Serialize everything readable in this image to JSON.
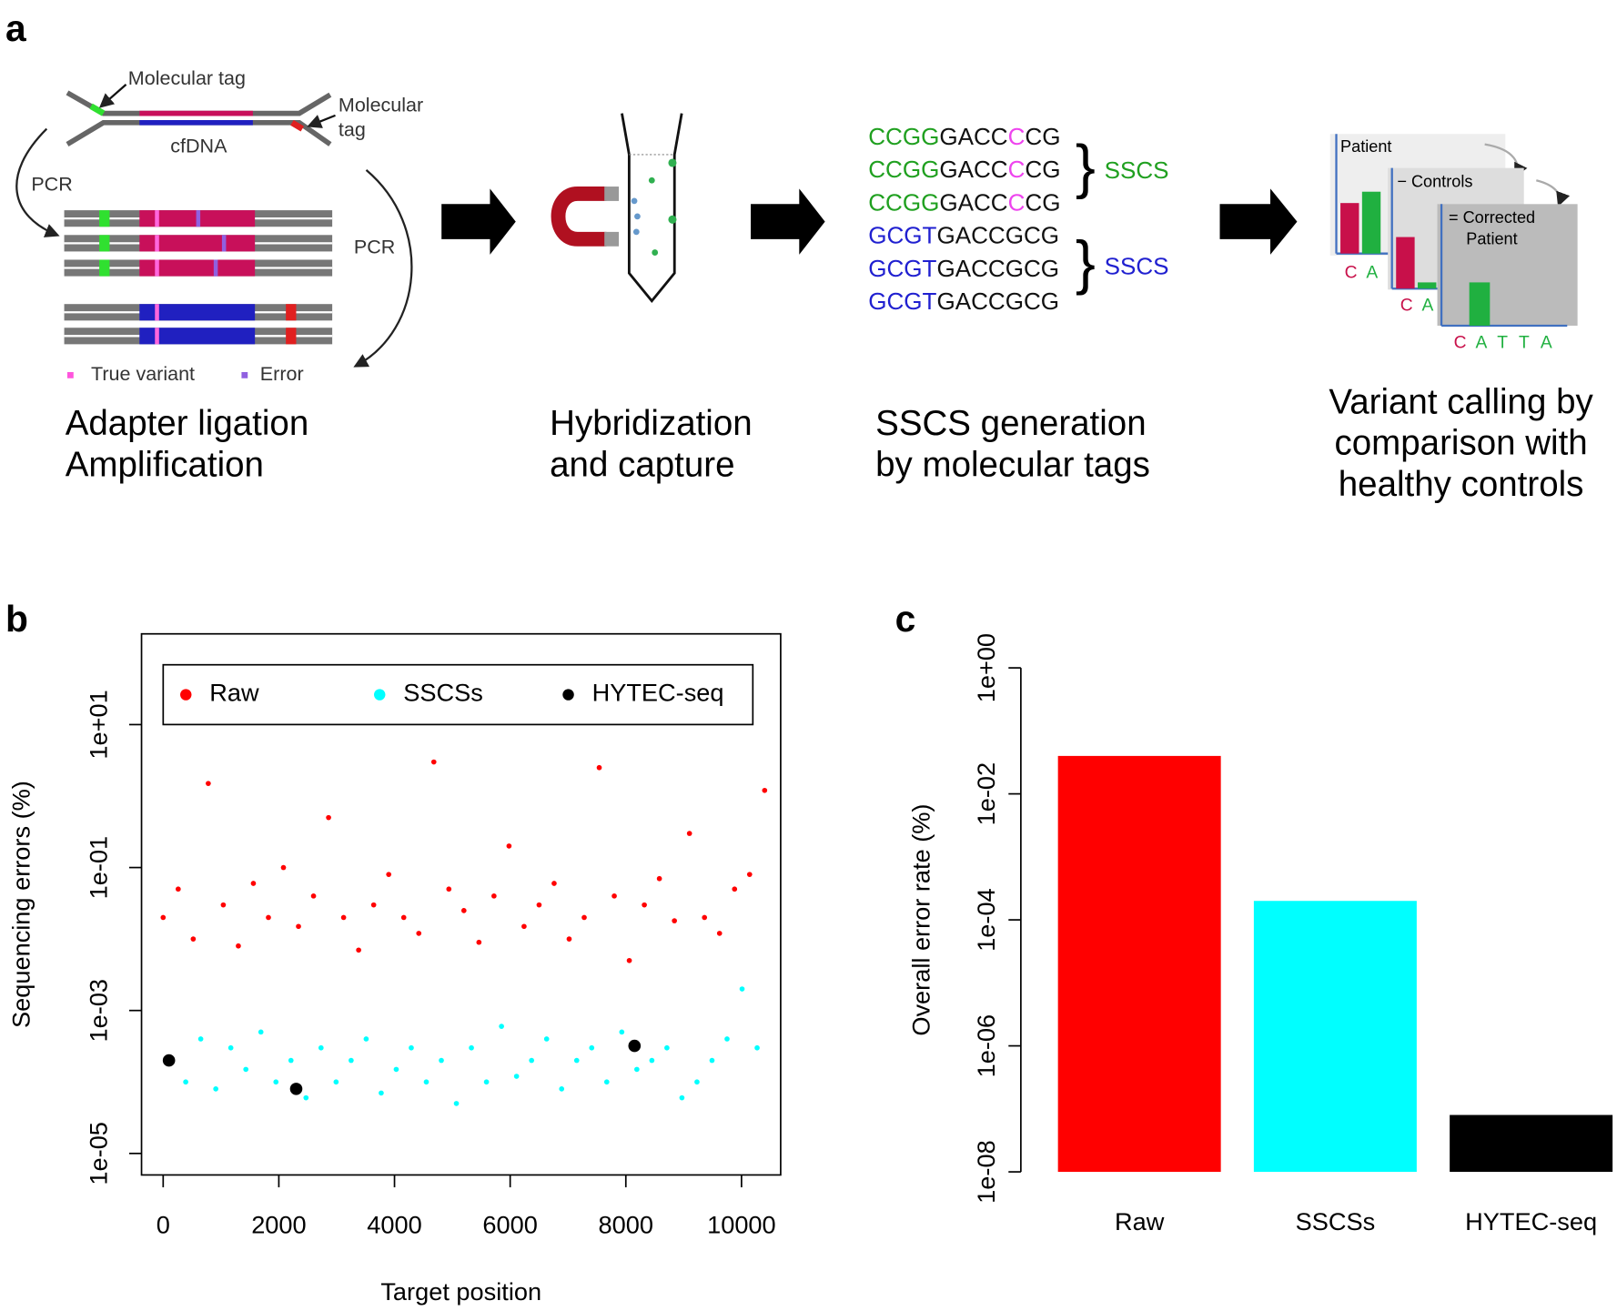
{
  "figure": {
    "panel_a": {
      "label": "a",
      "molecular_tag_1": "Molecular tag",
      "molecular_tag_2": [
        "Molecular",
        "tag"
      ],
      "cfdna": "cfDNA",
      "pcr_1": "PCR",
      "pcr_2": "PCR",
      "legend": [
        "True variant",
        "Error"
      ],
      "steps": [
        [
          "Adapter ligation",
          "Amplification"
        ],
        [
          "Hybridization",
          "and capture"
        ],
        [
          "SSCS generation",
          "by molecular tags"
        ],
        [
          "Variant calling by",
          "comparison with",
          "healthy controls"
        ]
      ],
      "sequences": [
        [
          "CCGG",
          "GACC",
          "C",
          "CG"
        ],
        [
          "CCGG",
          "GACC",
          "C",
          "CG"
        ],
        [
          "CCGG",
          "GACC",
          "C",
          "CG"
        ],
        [
          "GCGT",
          "GACCGCG"
        ],
        [
          "GCGT",
          "GACCGCG"
        ],
        [
          "GCGT",
          "GACCGCG"
        ]
      ],
      "sscs": [
        "SSCS",
        "SSCS"
      ],
      "mini_charts": {
        "patient": "Patient",
        "controls": "− Controls",
        "corrected": [
          "= Corrected",
          "Patient"
        ],
        "bases_1": [
          "C",
          "A"
        ],
        "bases_2": [
          "C",
          "A"
        ],
        "bases_3": [
          "C",
          "A",
          "T",
          "T",
          "A"
        ]
      }
    },
    "panel_b_label": "b",
    "panel_c_label": "c"
  },
  "chart_data": [
    {
      "type": "scatter",
      "xlabel": "Target position",
      "ylabel": "Sequencing errors (%)",
      "xlim": [
        -374,
        10677
      ],
      "ylim": [
        5e-06,
        186
      ],
      "log_y": true,
      "legend": "top",
      "xticks": [
        0,
        2000,
        4000,
        6000,
        8000,
        10000
      ],
      "yticks": [
        {
          "value": 10,
          "label": "1e+01"
        },
        {
          "value": 0.1,
          "label": "1e-01"
        },
        {
          "value": 0.001,
          "label": "1e-03"
        },
        {
          "value": 1e-05,
          "label": "1e-05"
        }
      ],
      "series": [
        {
          "name": "Raw",
          "color": "#ff0000",
          "x": [
            0,
            260,
            520,
            780,
            1040,
            1300,
            1560,
            1820,
            2080,
            2340,
            2600,
            2860,
            3120,
            3380,
            3640,
            3900,
            4160,
            4420,
            4680,
            4940,
            5200,
            5460,
            5720,
            5980,
            6240,
            6500,
            6760,
            7020,
            7280,
            7540,
            7800,
            8060,
            8320,
            8580,
            8840,
            9100,
            9360,
            9620,
            9880,
            10140,
            10400
          ],
          "values": [
            0.02,
            0.05,
            0.01,
            1.5,
            0.03,
            0.008,
            0.06,
            0.02,
            0.1,
            0.015,
            0.04,
            0.5,
            0.02,
            0.007,
            0.03,
            0.08,
            0.02,
            0.012,
            3,
            0.05,
            0.025,
            0.009,
            0.04,
            0.2,
            0.015,
            0.03,
            0.06,
            0.01,
            0.02,
            2.5,
            0.04,
            0.005,
            0.03,
            0.07,
            0.018,
            0.3,
            0.02,
            0.012,
            0.05,
            0.08,
            1.2
          ]
        },
        {
          "name": "SSCSs",
          "color": "#00ffff",
          "x": [
            130,
            390,
            650,
            910,
            1170,
            1430,
            1690,
            1950,
            2210,
            2470,
            2730,
            2990,
            3250,
            3510,
            3770,
            4030,
            4290,
            4550,
            4810,
            5070,
            5330,
            5590,
            5850,
            6110,
            6370,
            6630,
            6890,
            7150,
            7410,
            7670,
            7930,
            8190,
            8450,
            8710,
            8970,
            9230,
            9490,
            9750,
            10010,
            10270
          ],
          "values": [
            0.0002,
            0.0001,
            0.0004,
            8e-05,
            0.0003,
            0.00015,
            0.0005,
            0.0001,
            0.0002,
            6e-05,
            0.0003,
            0.0001,
            0.0002,
            0.0004,
            7e-05,
            0.00015,
            0.0003,
            0.0001,
            0.0002,
            5e-05,
            0.0003,
            0.0001,
            0.0006,
            0.00012,
            0.0002,
            0.0004,
            8e-05,
            0.0002,
            0.0003,
            0.0001,
            0.0005,
            0.00015,
            0.0002,
            0.0003,
            6e-05,
            0.0001,
            0.0002,
            0.0004,
            0.002,
            0.0003
          ]
        },
        {
          "name": "HYTEC-seq",
          "color": "#000000",
          "x": [
            100,
            2300,
            8150
          ],
          "values": [
            0.0002,
            8e-05,
            0.00032
          ]
        }
      ]
    },
    {
      "type": "bar",
      "ylabel": "Overall error rate (%)",
      "categories": [
        "Raw",
        "SSCSs",
        "HYTEC-seq"
      ],
      "values": [
        0.04,
        0.0002,
        8e-08
      ],
      "colors": [
        "#ff0000",
        "#00ffff",
        "#000000"
      ],
      "ylim": [
        1e-08,
        1
      ],
      "log_y": true,
      "yticks": [
        {
          "value": 1,
          "label": "1e+00"
        },
        {
          "value": 0.01,
          "label": "1e-02"
        },
        {
          "value": 0.0001,
          "label": "1e-04"
        },
        {
          "value": 1e-06,
          "label": "1e-06"
        },
        {
          "value": 1e-08,
          "label": "1e-08"
        }
      ]
    }
  ]
}
